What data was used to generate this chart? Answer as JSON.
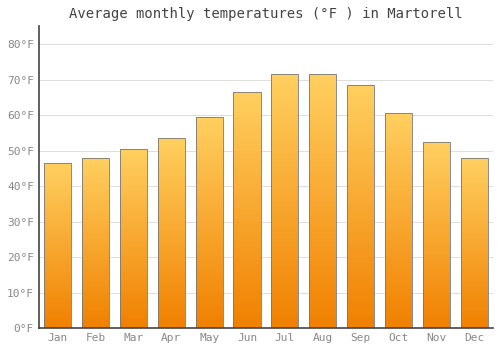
{
  "title": "Average monthly temperatures (°F ) in Martorell",
  "months": [
    "Jan",
    "Feb",
    "Mar",
    "Apr",
    "May",
    "Jun",
    "Jul",
    "Aug",
    "Sep",
    "Oct",
    "Nov",
    "Dec"
  ],
  "values": [
    46.5,
    48.0,
    50.5,
    53.5,
    59.5,
    66.5,
    71.5,
    71.5,
    68.5,
    60.5,
    52.5,
    48.0
  ],
  "bar_color_top": "#FFD060",
  "bar_color_bottom": "#F08000",
  "bar_edge_color": "#888888",
  "background_color": "#FFFFFF",
  "grid_color": "#DDDDDD",
  "title_fontsize": 10,
  "tick_fontsize": 8,
  "tick_color": "#888888",
  "ylim": [
    0,
    85
  ],
  "yticks": [
    0,
    10,
    20,
    30,
    40,
    50,
    60,
    70,
    80
  ],
  "ytick_labels": [
    "0°F",
    "10°F",
    "20°F",
    "30°F",
    "40°F",
    "50°F",
    "60°F",
    "70°F",
    "80°F"
  ],
  "bar_width": 0.72
}
